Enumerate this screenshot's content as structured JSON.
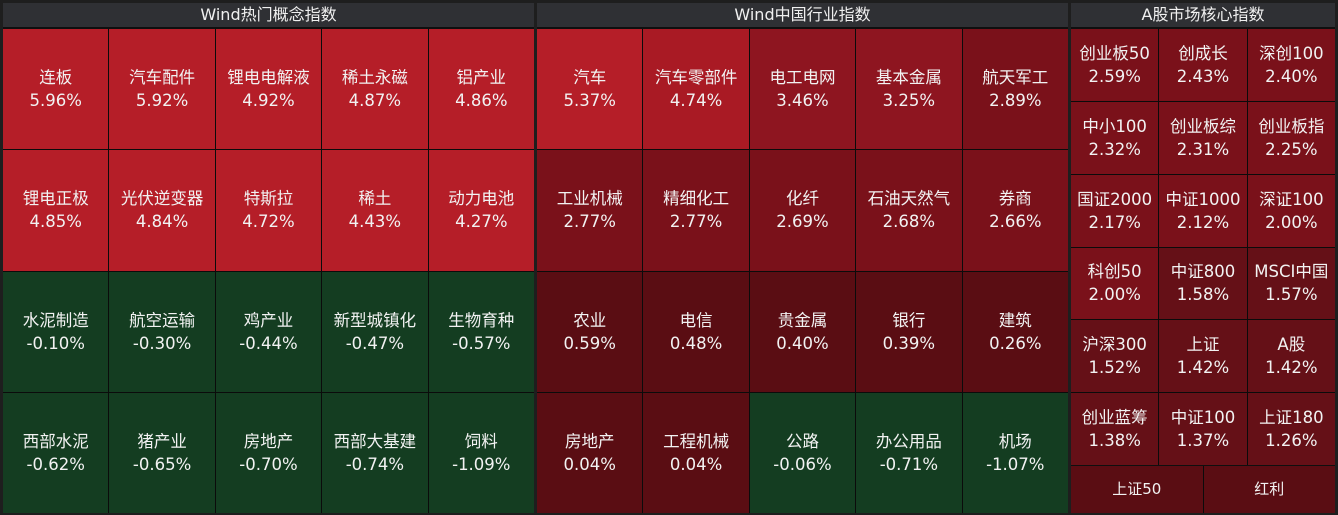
{
  "panels": [
    {
      "title": "Wind热门概念指数",
      "cells": [
        {
          "name": "连板",
          "pct": "5.96%",
          "tone": "r1"
        },
        {
          "name": "汽车配件",
          "pct": "5.92%",
          "tone": "r1"
        },
        {
          "name": "锂电电解液",
          "pct": "4.92%",
          "tone": "r1"
        },
        {
          "name": "稀土永磁",
          "pct": "4.87%",
          "tone": "r1"
        },
        {
          "name": "铝产业",
          "pct": "4.86%",
          "tone": "r1"
        },
        {
          "name": "锂电正极",
          "pct": "4.85%",
          "tone": "r1"
        },
        {
          "name": "光伏逆变器",
          "pct": "4.84%",
          "tone": "r1"
        },
        {
          "name": "特斯拉",
          "pct": "4.72%",
          "tone": "r1"
        },
        {
          "name": "稀土",
          "pct": "4.43%",
          "tone": "r1"
        },
        {
          "name": "动力电池",
          "pct": "4.27%",
          "tone": "r1"
        },
        {
          "name": "水泥制造",
          "pct": "-0.10%",
          "tone": "g1"
        },
        {
          "name": "航空运输",
          "pct": "-0.30%",
          "tone": "g1"
        },
        {
          "name": "鸡产业",
          "pct": "-0.44%",
          "tone": "g1"
        },
        {
          "name": "新型城镇化",
          "pct": "-0.47%",
          "tone": "g1"
        },
        {
          "name": "生物育种",
          "pct": "-0.57%",
          "tone": "g1"
        },
        {
          "name": "西部水泥",
          "pct": "-0.62%",
          "tone": "g1"
        },
        {
          "name": "猪产业",
          "pct": "-0.65%",
          "tone": "g1"
        },
        {
          "name": "房地产",
          "pct": "-0.70%",
          "tone": "g1"
        },
        {
          "name": "西部大基建",
          "pct": "-0.74%",
          "tone": "g1"
        },
        {
          "name": "饲料",
          "pct": "-1.09%",
          "tone": "g1"
        }
      ]
    },
    {
      "title": "Wind中国行业指数",
      "cells": [
        {
          "name": "汽车",
          "pct": "5.37%",
          "tone": "r1"
        },
        {
          "name": "汽车零部件",
          "pct": "4.74%",
          "tone": "r2"
        },
        {
          "name": "电工电网",
          "pct": "3.46%",
          "tone": "r3"
        },
        {
          "name": "基本金属",
          "pct": "3.25%",
          "tone": "r3"
        },
        {
          "name": "航天军工",
          "pct": "2.89%",
          "tone": "r4"
        },
        {
          "name": "工业机械",
          "pct": "2.77%",
          "tone": "r4"
        },
        {
          "name": "精细化工",
          "pct": "2.77%",
          "tone": "r4"
        },
        {
          "name": "化纤",
          "pct": "2.69%",
          "tone": "r4"
        },
        {
          "name": "石油天然气",
          "pct": "2.68%",
          "tone": "r4"
        },
        {
          "name": "券商",
          "pct": "2.66%",
          "tone": "r4"
        },
        {
          "name": "农业",
          "pct": "0.59%",
          "tone": "r6"
        },
        {
          "name": "电信",
          "pct": "0.48%",
          "tone": "r6"
        },
        {
          "name": "贵金属",
          "pct": "0.40%",
          "tone": "r6"
        },
        {
          "name": "银行",
          "pct": "0.39%",
          "tone": "r6"
        },
        {
          "name": "建筑",
          "pct": "0.26%",
          "tone": "r6"
        },
        {
          "name": "房地产",
          "pct": "0.04%",
          "tone": "r6"
        },
        {
          "name": "工程机械",
          "pct": "0.04%",
          "tone": "r6"
        },
        {
          "name": "公路",
          "pct": "-0.06%",
          "tone": "g1"
        },
        {
          "name": "办公用品",
          "pct": "-0.71%",
          "tone": "g1"
        },
        {
          "name": "机场",
          "pct": "-1.07%",
          "tone": "g1"
        }
      ]
    },
    {
      "title": "A股市场核心指数",
      "cells": [
        {
          "name": "创业板50",
          "pct": "2.59%",
          "tone": "r4"
        },
        {
          "name": "创成长",
          "pct": "2.43%",
          "tone": "r4"
        },
        {
          "name": "深创100",
          "pct": "2.40%",
          "tone": "r4"
        },
        {
          "name": "中小100",
          "pct": "2.32%",
          "tone": "r4"
        },
        {
          "name": "创业板综",
          "pct": "2.31%",
          "tone": "r4"
        },
        {
          "name": "创业板指",
          "pct": "2.25%",
          "tone": "r4"
        },
        {
          "name": "国证2000",
          "pct": "2.17%",
          "tone": "r4"
        },
        {
          "name": "中证1000",
          "pct": "2.12%",
          "tone": "r4"
        },
        {
          "name": "深证100",
          "pct": "2.00%",
          "tone": "r4"
        },
        {
          "name": "科创50",
          "pct": "2.00%",
          "tone": "r4"
        },
        {
          "name": "中证800",
          "pct": "1.58%",
          "tone": "r5"
        },
        {
          "name": "MSCI中国",
          "pct": "1.57%",
          "tone": "r5"
        },
        {
          "name": "沪深300",
          "pct": "1.52%",
          "tone": "r5"
        },
        {
          "name": "上证",
          "pct": "1.42%",
          "tone": "r5"
        },
        {
          "name": "A股",
          "pct": "1.42%",
          "tone": "r5"
        },
        {
          "name": "创业蓝筹",
          "pct": "1.38%",
          "tone": "r5"
        },
        {
          "name": "中证100",
          "pct": "1.37%",
          "tone": "r5"
        },
        {
          "name": "上证180",
          "pct": "1.26%",
          "tone": "r5"
        }
      ],
      "bottom": [
        {
          "name": "上证50"
        },
        {
          "name": "红利"
        }
      ]
    }
  ]
}
